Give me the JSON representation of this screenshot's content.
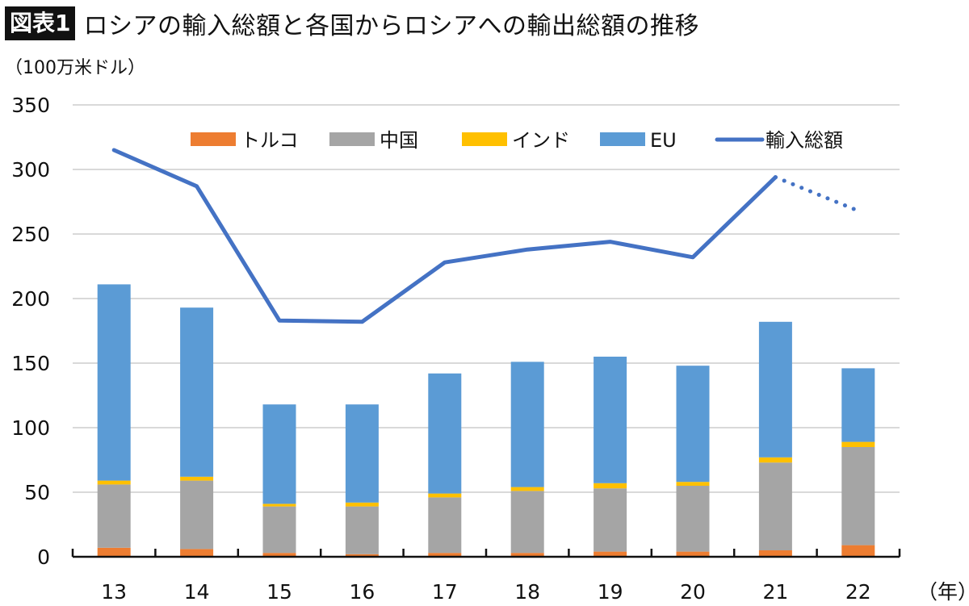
{
  "header": {
    "badge": "図表1",
    "title": "ロシアの輸入総額と各国からロシアへの輸出総額の推移",
    "unit": "（100万米ドル）"
  },
  "chart_data": {
    "type": "bar",
    "stacked": true,
    "title": "ロシアの輸入総額と各国からロシアへの輸出総額の推移",
    "ylabel": "（100万米ドル）",
    "xlabel": "（年）",
    "ylim": [
      0,
      350
    ],
    "yticks": [
      0,
      50,
      100,
      150,
      200,
      250,
      300,
      350
    ],
    "grid": true,
    "legend_position": "top",
    "categories": [
      "13",
      "14",
      "15",
      "16",
      "17",
      "18",
      "19",
      "20",
      "21",
      "22"
    ],
    "series": [
      {
        "name": "トルコ",
        "type": "bar",
        "color": "#ED7D31",
        "values": [
          7,
          6,
          3,
          2,
          3,
          3,
          4,
          4,
          5,
          9
        ]
      },
      {
        "name": "中国",
        "type": "bar",
        "color": "#A5A5A5",
        "values": [
          49,
          53,
          36,
          37,
          43,
          48,
          49,
          51,
          68,
          76
        ]
      },
      {
        "name": "インド",
        "type": "bar",
        "color": "#FFC000",
        "values": [
          3,
          3,
          2,
          3,
          3,
          3,
          4,
          3,
          4,
          4
        ]
      },
      {
        "name": "EU",
        "type": "bar",
        "color": "#5B9BD5",
        "values": [
          152,
          131,
          77,
          76,
          93,
          97,
          98,
          90,
          105,
          57
        ]
      },
      {
        "name": "輸入総額",
        "type": "line",
        "color": "#4472C4",
        "values": [
          315,
          287,
          183,
          182,
          228,
          238,
          244,
          232,
          294,
          268
        ],
        "dotted_last_segment": true
      }
    ]
  }
}
